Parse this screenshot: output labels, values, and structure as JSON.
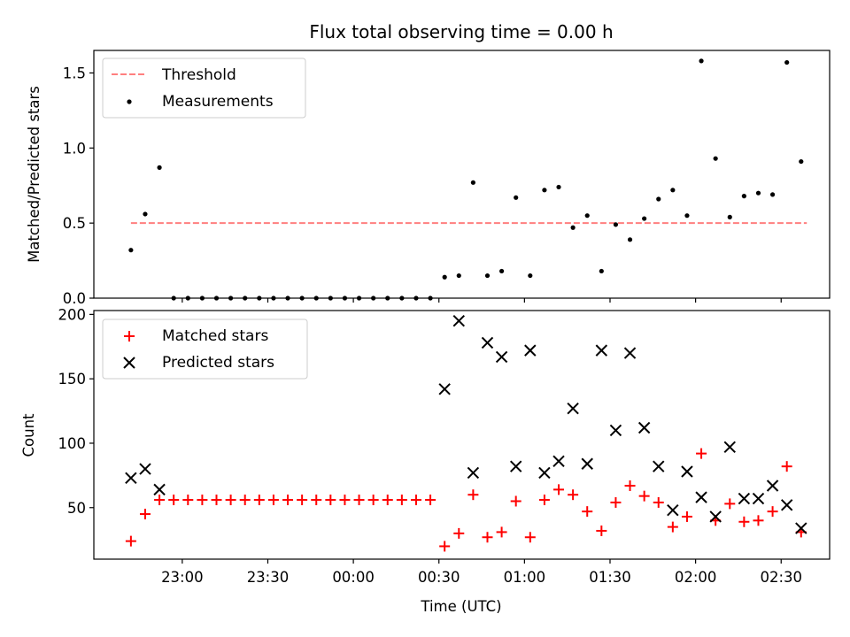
{
  "title": "Flux total observing time = 0.00 h",
  "xlabel": "Time (UTC)",
  "colors": {
    "threshold": "#ff7f7f",
    "measurements": "#000000",
    "matched": "#ff0000",
    "predicted": "#000000",
    "axes": "#000000",
    "background": "#ffffff"
  },
  "chart_data": [
    {
      "type": "scatter",
      "ylabel": "Matched/Predicted stars",
      "xlim": [
        "22:29",
        "02:47"
      ],
      "ylim": [
        0,
        1.65
      ],
      "yticks": [
        0.0,
        0.5,
        1.0,
        1.5
      ],
      "ytick_labels": [
        "0.0",
        "0.5",
        "1.0",
        "1.5"
      ],
      "xticks": [
        "23:00",
        "23:30",
        "00:00",
        "00:30",
        "01:00",
        "01:30",
        "02:00",
        "02:30"
      ],
      "legend": {
        "position": "top-left",
        "entries": [
          "Threshold",
          "Measurements"
        ]
      },
      "threshold": {
        "name": "Threshold",
        "value": 0.5,
        "x_range": [
          "22:42",
          "02:39"
        ]
      },
      "series": [
        {
          "name": "Measurements",
          "marker": "dot",
          "points": [
            [
              "22:42",
              0.32
            ],
            [
              "22:47",
              0.56
            ],
            [
              "22:52",
              0.87
            ],
            [
              "22:57",
              0.0
            ],
            [
              "23:02",
              0.0
            ],
            [
              "23:07",
              0.0
            ],
            [
              "23:12",
              0.0
            ],
            [
              "23:17",
              0.0
            ],
            [
              "23:22",
              0.0
            ],
            [
              "23:27",
              0.0
            ],
            [
              "23:32",
              0.0
            ],
            [
              "23:37",
              0.0
            ],
            [
              "23:42",
              0.0
            ],
            [
              "23:47",
              0.0
            ],
            [
              "23:52",
              0.0
            ],
            [
              "23:57",
              0.0
            ],
            [
              "00:02",
              0.0
            ],
            [
              "00:07",
              0.0
            ],
            [
              "00:12",
              0.0
            ],
            [
              "00:17",
              0.0
            ],
            [
              "00:22",
              0.0
            ],
            [
              "00:27",
              0.0
            ],
            [
              "00:32",
              0.14
            ],
            [
              "00:37",
              0.15
            ],
            [
              "00:42",
              0.77
            ],
            [
              "00:47",
              0.15
            ],
            [
              "00:52",
              0.18
            ],
            [
              "00:57",
              0.67
            ],
            [
              "01:02",
              0.15
            ],
            [
              "01:07",
              0.72
            ],
            [
              "01:12",
              0.74
            ],
            [
              "01:17",
              0.47
            ],
            [
              "01:22",
              0.55
            ],
            [
              "01:27",
              0.18
            ],
            [
              "01:32",
              0.49
            ],
            [
              "01:37",
              0.39
            ],
            [
              "01:42",
              0.53
            ],
            [
              "01:47",
              0.66
            ],
            [
              "01:52",
              0.72
            ],
            [
              "01:57",
              0.55
            ],
            [
              "02:02",
              1.58
            ],
            [
              "02:07",
              0.93
            ],
            [
              "02:12",
              0.54
            ],
            [
              "02:17",
              0.68
            ],
            [
              "02:22",
              0.7
            ],
            [
              "02:27",
              0.69
            ],
            [
              "02:32",
              1.57
            ],
            [
              "02:37",
              0.91
            ]
          ]
        }
      ]
    },
    {
      "type": "scatter",
      "ylabel": "Count",
      "xlim": [
        "22:29",
        "02:47"
      ],
      "ylim": [
        10,
        203
      ],
      "yticks": [
        50,
        100,
        150,
        200
      ],
      "ytick_labels": [
        "50",
        "100",
        "150",
        "200"
      ],
      "xticks": [
        "23:00",
        "23:30",
        "00:00",
        "00:30",
        "01:00",
        "01:30",
        "02:00",
        "02:30"
      ],
      "legend": {
        "position": "top-left",
        "entries": [
          "Matched stars",
          "Predicted stars"
        ]
      },
      "series": [
        {
          "name": "Matched stars",
          "marker": "plus",
          "points": [
            [
              "22:42",
              24
            ],
            [
              "22:47",
              45
            ],
            [
              "22:52",
              56
            ],
            [
              "22:57",
              56
            ],
            [
              "23:02",
              56
            ],
            [
              "23:07",
              56
            ],
            [
              "23:12",
              56
            ],
            [
              "23:17",
              56
            ],
            [
              "23:22",
              56
            ],
            [
              "23:27",
              56
            ],
            [
              "23:32",
              56
            ],
            [
              "23:37",
              56
            ],
            [
              "23:42",
              56
            ],
            [
              "23:47",
              56
            ],
            [
              "23:52",
              56
            ],
            [
              "23:57",
              56
            ],
            [
              "00:02",
              56
            ],
            [
              "00:07",
              56
            ],
            [
              "00:12",
              56
            ],
            [
              "00:17",
              56
            ],
            [
              "00:22",
              56
            ],
            [
              "00:27",
              56
            ],
            [
              "00:32",
              20
            ],
            [
              "00:37",
              30
            ],
            [
              "00:42",
              60
            ],
            [
              "00:47",
              27
            ],
            [
              "00:52",
              31
            ],
            [
              "00:57",
              55
            ],
            [
              "01:02",
              27
            ],
            [
              "01:07",
              56
            ],
            [
              "01:12",
              64
            ],
            [
              "01:17",
              60
            ],
            [
              "01:22",
              47
            ],
            [
              "01:27",
              32
            ],
            [
              "01:32",
              54
            ],
            [
              "01:37",
              67
            ],
            [
              "01:42",
              59
            ],
            [
              "01:47",
              54
            ],
            [
              "01:52",
              35
            ],
            [
              "01:57",
              43
            ],
            [
              "02:02",
              92
            ],
            [
              "02:07",
              40
            ],
            [
              "02:12",
              53
            ],
            [
              "02:17",
              39
            ],
            [
              "02:22",
              40
            ],
            [
              "02:27",
              47
            ],
            [
              "02:32",
              82
            ],
            [
              "02:37",
              31
            ]
          ]
        },
        {
          "name": "Predicted stars",
          "marker": "x",
          "points": [
            [
              "22:42",
              73
            ],
            [
              "22:47",
              80
            ],
            [
              "22:52",
              64
            ],
            [
              "00:32",
              142
            ],
            [
              "00:37",
              195
            ],
            [
              "00:42",
              77
            ],
            [
              "00:47",
              178
            ],
            [
              "00:52",
              167
            ],
            [
              "00:57",
              82
            ],
            [
              "01:02",
              172
            ],
            [
              "01:07",
              77
            ],
            [
              "01:12",
              86
            ],
            [
              "01:17",
              127
            ],
            [
              "01:22",
              84
            ],
            [
              "01:27",
              172
            ],
            [
              "01:32",
              110
            ],
            [
              "01:37",
              170
            ],
            [
              "01:42",
              112
            ],
            [
              "01:47",
              82
            ],
            [
              "01:52",
              48
            ],
            [
              "01:57",
              78
            ],
            [
              "02:02",
              58
            ],
            [
              "02:07",
              43
            ],
            [
              "02:12",
              97
            ],
            [
              "02:17",
              57
            ],
            [
              "02:22",
              57
            ],
            [
              "02:27",
              67
            ],
            [
              "02:32",
              52
            ],
            [
              "02:37",
              34
            ]
          ]
        }
      ]
    }
  ]
}
